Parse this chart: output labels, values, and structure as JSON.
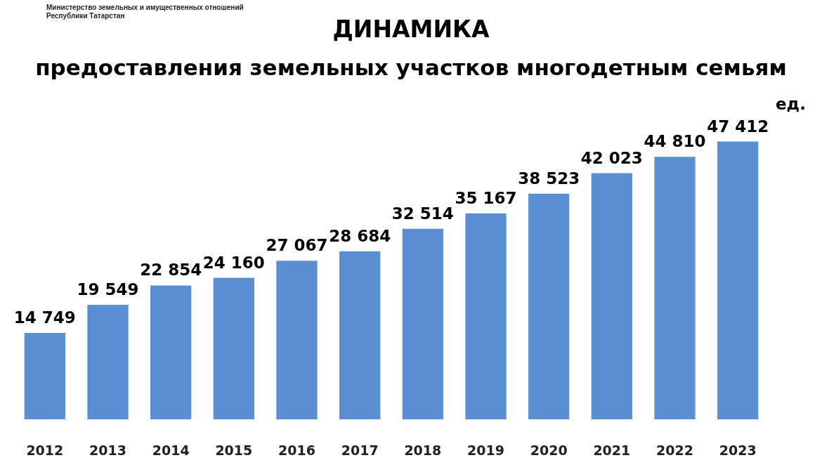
{
  "chart_data": {
    "type": "bar",
    "title": "ДИНАМИКА",
    "subtitle": "предоставления земельных участков многодетным семьям",
    "ylabel": "ед.",
    "annotations": [
      "Министерство земельных и имущественных отношений Республики Татарстан"
    ],
    "categories": [
      "2012",
      "2013",
      "2014",
      "2015",
      "2016",
      "2017",
      "2018",
      "2019",
      "2020",
      "2021",
      "2022",
      "2023"
    ],
    "values": [
      14749,
      19549,
      22854,
      24160,
      27067,
      28684,
      32514,
      35167,
      38523,
      42023,
      44810,
      47412
    ],
    "value_labels": [
      "14 749",
      "19 549",
      "22 854",
      "24 160",
      "27 067",
      "28 684",
      "32 514",
      "35 167",
      "38 523",
      "42 023",
      "44 810",
      "47 412"
    ],
    "color": "#5a8fd2",
    "tick_labels": "x",
    "legend": false
  }
}
